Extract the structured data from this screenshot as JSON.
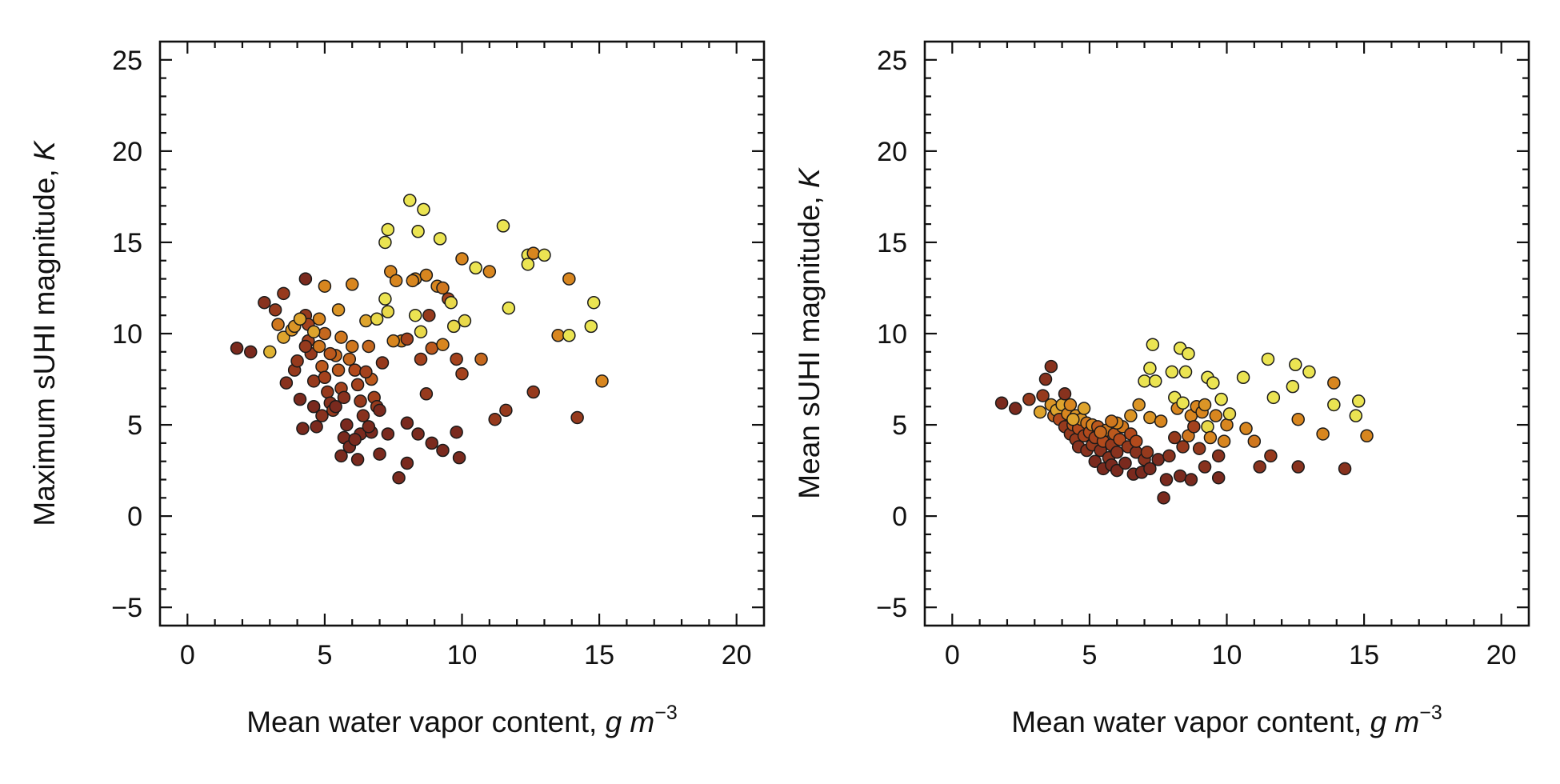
{
  "chart_data": [
    {
      "type": "scatter",
      "xlabel": "Mean water vapor content, ",
      "xlabel_unit": "g m",
      "xlabel_exponent": "−3",
      "ylabel": "Maximum sUHI magnitude, ",
      "ylabel_unit": "K",
      "xlim": [
        -1,
        21
      ],
      "ylim": [
        -6,
        26
      ],
      "xticks": [
        "0",
        "5",
        "10",
        "15",
        "20"
      ],
      "yticks": [
        "−5",
        "0",
        "5",
        "10",
        "15",
        "20",
        "25"
      ],
      "color_scale": [
        "#3a0f0c",
        "#7a2a1e",
        "#b24a1c",
        "#d8861f",
        "#e3c23a",
        "#eeef5a"
      ],
      "grid": false,
      "points": [
        [
          1.8,
          9.2,
          0.2
        ],
        [
          2.3,
          9.0,
          0.2
        ],
        [
          2.8,
          11.7,
          0.25
        ],
        [
          3.2,
          11.3,
          0.3
        ],
        [
          3.5,
          12.2,
          0.3
        ],
        [
          3.3,
          10.5,
          0.55
        ],
        [
          3.0,
          9.0,
          0.75
        ],
        [
          3.5,
          9.8,
          0.7
        ],
        [
          3.8,
          10.2,
          0.65
        ],
        [
          3.6,
          7.3,
          0.25
        ],
        [
          3.9,
          8.0,
          0.3
        ],
        [
          4.0,
          8.5,
          0.3
        ],
        [
          4.1,
          6.4,
          0.2
        ],
        [
          4.2,
          4.8,
          0.2
        ],
        [
          4.3,
          13.0,
          0.2
        ],
        [
          4.3,
          11.0,
          0.3
        ],
        [
          4.4,
          10.5,
          0.35
        ],
        [
          4.4,
          9.6,
          0.35
        ],
        [
          4.5,
          8.9,
          0.3
        ],
        [
          4.6,
          7.4,
          0.3
        ],
        [
          4.6,
          6.0,
          0.2
        ],
        [
          4.7,
          4.9,
          0.2
        ],
        [
          4.8,
          10.8,
          0.6
        ],
        [
          4.8,
          9.3,
          0.55
        ],
        [
          4.9,
          8.2,
          0.45
        ],
        [
          5.0,
          12.6,
          0.6
        ],
        [
          5.0,
          7.6,
          0.35
        ],
        [
          5.1,
          6.8,
          0.3
        ],
        [
          5.2,
          6.2,
          0.25
        ],
        [
          5.3,
          5.8,
          0.3
        ],
        [
          5.0,
          10.0,
          0.5
        ],
        [
          4.6,
          10.1,
          0.7
        ],
        [
          3.9,
          10.4,
          0.65
        ],
        [
          4.1,
          10.8,
          0.7
        ],
        [
          5.4,
          8.8,
          0.5
        ],
        [
          5.5,
          8.0,
          0.45
        ],
        [
          5.5,
          11.3,
          0.65
        ],
        [
          5.6,
          7.0,
          0.35
        ],
        [
          5.7,
          6.5,
          0.25
        ],
        [
          5.8,
          5.0,
          0.2
        ],
        [
          5.7,
          4.3,
          0.2
        ],
        [
          5.9,
          3.8,
          0.2
        ],
        [
          5.6,
          3.3,
          0.2
        ],
        [
          6.0,
          9.3,
          0.55
        ],
        [
          6.0,
          12.7,
          0.6
        ],
        [
          6.1,
          8.0,
          0.4
        ],
        [
          6.2,
          7.2,
          0.35
        ],
        [
          6.3,
          6.3,
          0.3
        ],
        [
          6.4,
          5.5,
          0.25
        ],
        [
          6.3,
          4.5,
          0.2
        ],
        [
          6.2,
          3.1,
          0.2
        ],
        [
          6.5,
          10.7,
          0.7
        ],
        [
          6.6,
          9.3,
          0.5
        ],
        [
          6.7,
          7.5,
          0.45
        ],
        [
          6.8,
          6.5,
          0.35
        ],
        [
          6.9,
          6.0,
          0.3
        ],
        [
          7.0,
          5.8,
          0.2
        ],
        [
          6.7,
          4.6,
          0.2
        ],
        [
          7.0,
          3.4,
          0.2
        ],
        [
          7.3,
          4.5,
          0.2
        ],
        [
          7.1,
          8.4,
          0.3
        ],
        [
          6.9,
          10.8,
          0.9
        ],
        [
          7.2,
          11.9,
          0.95
        ],
        [
          7.2,
          15.0,
          0.95
        ],
        [
          7.3,
          15.7,
          0.95
        ],
        [
          7.4,
          13.4,
          0.6
        ],
        [
          7.3,
          11.2,
          0.9
        ],
        [
          7.6,
          12.9,
          0.6
        ],
        [
          7.8,
          9.6,
          0.6
        ],
        [
          7.7,
          2.1,
          0.2
        ],
        [
          8.0,
          9.7,
          0.35
        ],
        [
          8.0,
          5.1,
          0.2
        ],
        [
          8.0,
          2.9,
          0.2
        ],
        [
          8.1,
          17.3,
          0.95
        ],
        [
          8.3,
          11.0,
          0.95
        ],
        [
          8.3,
          13.0,
          0.6
        ],
        [
          8.4,
          15.6,
          0.95
        ],
        [
          8.5,
          10.1,
          0.9
        ],
        [
          8.5,
          8.6,
          0.35
        ],
        [
          8.4,
          4.5,
          0.2
        ],
        [
          8.6,
          16.8,
          0.95
        ],
        [
          8.7,
          13.2,
          0.6
        ],
        [
          8.8,
          11.0,
          0.3
        ],
        [
          8.7,
          6.7,
          0.3
        ],
        [
          8.9,
          9.2,
          0.45
        ],
        [
          8.9,
          4.0,
          0.2
        ],
        [
          9.1,
          12.6,
          0.6
        ],
        [
          9.2,
          15.2,
          0.95
        ],
        [
          9.3,
          12.5,
          0.55
        ],
        [
          9.3,
          9.4,
          0.6
        ],
        [
          9.3,
          3.6,
          0.2
        ],
        [
          9.5,
          11.9,
          0.35
        ],
        [
          9.6,
          11.7,
          0.9
        ],
        [
          9.7,
          10.4,
          0.9
        ],
        [
          9.8,
          8.6,
          0.35
        ],
        [
          9.8,
          4.6,
          0.2
        ],
        [
          9.9,
          3.2,
          0.2
        ],
        [
          10.0,
          7.8,
          0.35
        ],
        [
          10.1,
          10.7,
          0.9
        ],
        [
          10.0,
          14.1,
          0.6
        ],
        [
          10.5,
          13.6,
          0.95
        ],
        [
          10.7,
          8.6,
          0.5
        ],
        [
          11.0,
          13.4,
          0.6
        ],
        [
          11.2,
          5.3,
          0.3
        ],
        [
          11.5,
          15.9,
          0.95
        ],
        [
          11.7,
          11.4,
          0.95
        ],
        [
          11.6,
          5.8,
          0.3
        ],
        [
          12.4,
          14.3,
          0.95
        ],
        [
          12.4,
          13.8,
          0.95
        ],
        [
          12.6,
          14.4,
          0.6
        ],
        [
          12.6,
          6.8,
          0.3
        ],
        [
          13.0,
          14.3,
          0.95
        ],
        [
          13.5,
          9.9,
          0.6
        ],
        [
          13.9,
          9.9,
          0.95
        ],
        [
          13.9,
          13.0,
          0.6
        ],
        [
          14.2,
          5.4,
          0.3
        ],
        [
          14.7,
          10.4,
          0.95
        ],
        [
          14.8,
          11.7,
          0.95
        ],
        [
          15.1,
          7.4,
          0.6
        ],
        [
          5.2,
          8.9,
          0.45
        ],
        [
          5.9,
          8.6,
          0.5
        ],
        [
          6.5,
          7.9,
          0.35
        ],
        [
          4.3,
          9.3,
          0.3
        ],
        [
          5.6,
          9.8,
          0.55
        ],
        [
          6.1,
          4.2,
          0.2
        ],
        [
          5.4,
          6.0,
          0.2
        ],
        [
          4.9,
          5.5,
          0.25
        ],
        [
          6.6,
          4.9,
          0.2
        ],
        [
          7.5,
          9.6,
          0.6
        ],
        [
          8.2,
          12.9,
          0.6
        ]
      ]
    },
    {
      "type": "scatter",
      "xlabel": "Mean water vapor content, ",
      "xlabel_unit": "g m",
      "xlabel_exponent": "−3",
      "ylabel": "Mean sUHI magnitude, ",
      "ylabel_unit": "K",
      "xlim": [
        -1,
        21
      ],
      "ylim": [
        -6,
        26
      ],
      "xticks": [
        "0",
        "5",
        "10",
        "15",
        "20"
      ],
      "yticks": [
        "−5",
        "0",
        "5",
        "10",
        "15",
        "20",
        "25"
      ],
      "color_scale": [
        "#3a0f0c",
        "#7a2a1e",
        "#b24a1c",
        "#d8861f",
        "#e3c23a",
        "#eeef5a"
      ],
      "grid": false,
      "points": [
        [
          1.8,
          6.2,
          0.2
        ],
        [
          2.3,
          5.9,
          0.2
        ],
        [
          2.8,
          6.4,
          0.3
        ],
        [
          3.2,
          5.7,
          0.7
        ],
        [
          3.3,
          6.6,
          0.3
        ],
        [
          3.4,
          7.5,
          0.25
        ],
        [
          3.6,
          8.2,
          0.25
        ],
        [
          3.6,
          6.1,
          0.65
        ],
        [
          3.7,
          5.5,
          0.5
        ],
        [
          3.8,
          5.8,
          0.7
        ],
        [
          3.9,
          5.3,
          0.4
        ],
        [
          4.0,
          6.1,
          0.7
        ],
        [
          4.1,
          4.9,
          0.3
        ],
        [
          4.1,
          6.7,
          0.25
        ],
        [
          4.2,
          5.6,
          0.6
        ],
        [
          4.3,
          4.5,
          0.3
        ],
        [
          4.3,
          6.1,
          0.6
        ],
        [
          4.4,
          5.0,
          0.45
        ],
        [
          4.5,
          4.2,
          0.3
        ],
        [
          4.5,
          5.5,
          0.65
        ],
        [
          4.6,
          3.8,
          0.25
        ],
        [
          4.6,
          4.8,
          0.4
        ],
        [
          4.7,
          5.3,
          0.65
        ],
        [
          4.8,
          4.4,
          0.35
        ],
        [
          4.8,
          5.9,
          0.7
        ],
        [
          4.9,
          3.6,
          0.25
        ],
        [
          4.9,
          5.1,
          0.55
        ],
        [
          5.0,
          4.6,
          0.4
        ],
        [
          5.1,
          3.9,
          0.3
        ],
        [
          5.1,
          5.0,
          0.6
        ],
        [
          5.2,
          3.0,
          0.2
        ],
        [
          5.2,
          4.3,
          0.35
        ],
        [
          5.3,
          4.9,
          0.45
        ],
        [
          5.4,
          3.6,
          0.25
        ],
        [
          5.5,
          2.6,
          0.2
        ],
        [
          5.5,
          4.1,
          0.4
        ],
        [
          5.6,
          4.7,
          0.55
        ],
        [
          5.7,
          3.2,
          0.25
        ],
        [
          5.8,
          2.8,
          0.2
        ],
        [
          5.8,
          3.9,
          0.3
        ],
        [
          5.9,
          4.5,
          0.45
        ],
        [
          6.0,
          2.5,
          0.2
        ],
        [
          6.0,
          3.5,
          0.25
        ],
        [
          6.1,
          4.2,
          0.4
        ],
        [
          6.2,
          4.9,
          0.55
        ],
        [
          6.3,
          2.9,
          0.2
        ],
        [
          6.4,
          3.8,
          0.3
        ],
        [
          6.5,
          4.5,
          0.4
        ],
        [
          6.5,
          5.5,
          0.65
        ],
        [
          6.6,
          2.3,
          0.2
        ],
        [
          6.7,
          3.5,
          0.25
        ],
        [
          6.7,
          4.1,
          0.4
        ],
        [
          6.8,
          6.1,
          0.65
        ],
        [
          6.9,
          2.4,
          0.2
        ],
        [
          7.0,
          3.1,
          0.25
        ],
        [
          7.0,
          7.4,
          0.95
        ],
        [
          7.1,
          3.5,
          0.3
        ],
        [
          7.2,
          2.6,
          0.2
        ],
        [
          7.2,
          5.4,
          0.65
        ],
        [
          7.2,
          8.1,
          0.95
        ],
        [
          7.3,
          9.4,
          0.95
        ],
        [
          7.4,
          7.4,
          0.95
        ],
        [
          7.5,
          3.1,
          0.2
        ],
        [
          7.6,
          5.2,
          0.6
        ],
        [
          7.7,
          1.0,
          0.2
        ],
        [
          7.8,
          2.0,
          0.2
        ],
        [
          7.9,
          3.3,
          0.25
        ],
        [
          8.0,
          7.9,
          0.95
        ],
        [
          8.1,
          6.5,
          0.95
        ],
        [
          8.1,
          4.3,
          0.3
        ],
        [
          8.2,
          5.9,
          0.6
        ],
        [
          8.3,
          9.2,
          0.95
        ],
        [
          8.3,
          2.2,
          0.2
        ],
        [
          8.4,
          6.2,
          0.95
        ],
        [
          8.4,
          3.8,
          0.3
        ],
        [
          8.5,
          7.9,
          0.95
        ],
        [
          8.6,
          8.9,
          0.95
        ],
        [
          8.6,
          4.4,
          0.55
        ],
        [
          8.7,
          2.0,
          0.2
        ],
        [
          8.7,
          5.5,
          0.6
        ],
        [
          8.8,
          4.9,
          0.35
        ],
        [
          8.9,
          6.0,
          0.6
        ],
        [
          9.0,
          3.7,
          0.3
        ],
        [
          9.1,
          5.7,
          0.6
        ],
        [
          9.2,
          2.7,
          0.25
        ],
        [
          9.2,
          6.1,
          0.65
        ],
        [
          9.3,
          7.6,
          0.95
        ],
        [
          9.3,
          4.9,
          0.9
        ],
        [
          9.4,
          4.3,
          0.6
        ],
        [
          9.5,
          7.3,
          0.95
        ],
        [
          9.6,
          5.5,
          0.6
        ],
        [
          9.7,
          3.3,
          0.25
        ],
        [
          9.7,
          2.1,
          0.2
        ],
        [
          9.8,
          6.4,
          0.95
        ],
        [
          9.9,
          4.1,
          0.6
        ],
        [
          10.0,
          5.0,
          0.6
        ],
        [
          10.1,
          5.6,
          0.9
        ],
        [
          10.6,
          7.6,
          0.95
        ],
        [
          10.7,
          4.8,
          0.6
        ],
        [
          11.0,
          4.1,
          0.55
        ],
        [
          11.2,
          2.7,
          0.25
        ],
        [
          11.5,
          8.6,
          0.95
        ],
        [
          11.6,
          3.3,
          0.3
        ],
        [
          11.7,
          6.5,
          0.95
        ],
        [
          12.4,
          7.1,
          0.95
        ],
        [
          12.5,
          8.3,
          0.95
        ],
        [
          12.6,
          2.7,
          0.25
        ],
        [
          12.6,
          5.3,
          0.6
        ],
        [
          13.0,
          7.9,
          0.95
        ],
        [
          13.5,
          4.5,
          0.6
        ],
        [
          13.9,
          6.1,
          0.95
        ],
        [
          13.9,
          7.3,
          0.6
        ],
        [
          14.3,
          2.6,
          0.25
        ],
        [
          14.7,
          5.5,
          0.95
        ],
        [
          14.8,
          6.3,
          0.95
        ],
        [
          15.1,
          4.4,
          0.6
        ],
        [
          5.4,
          4.6,
          0.5
        ],
        [
          6.0,
          5.1,
          0.6
        ],
        [
          4.4,
          5.3,
          0.7
        ],
        [
          5.8,
          5.2,
          0.55
        ]
      ]
    }
  ]
}
